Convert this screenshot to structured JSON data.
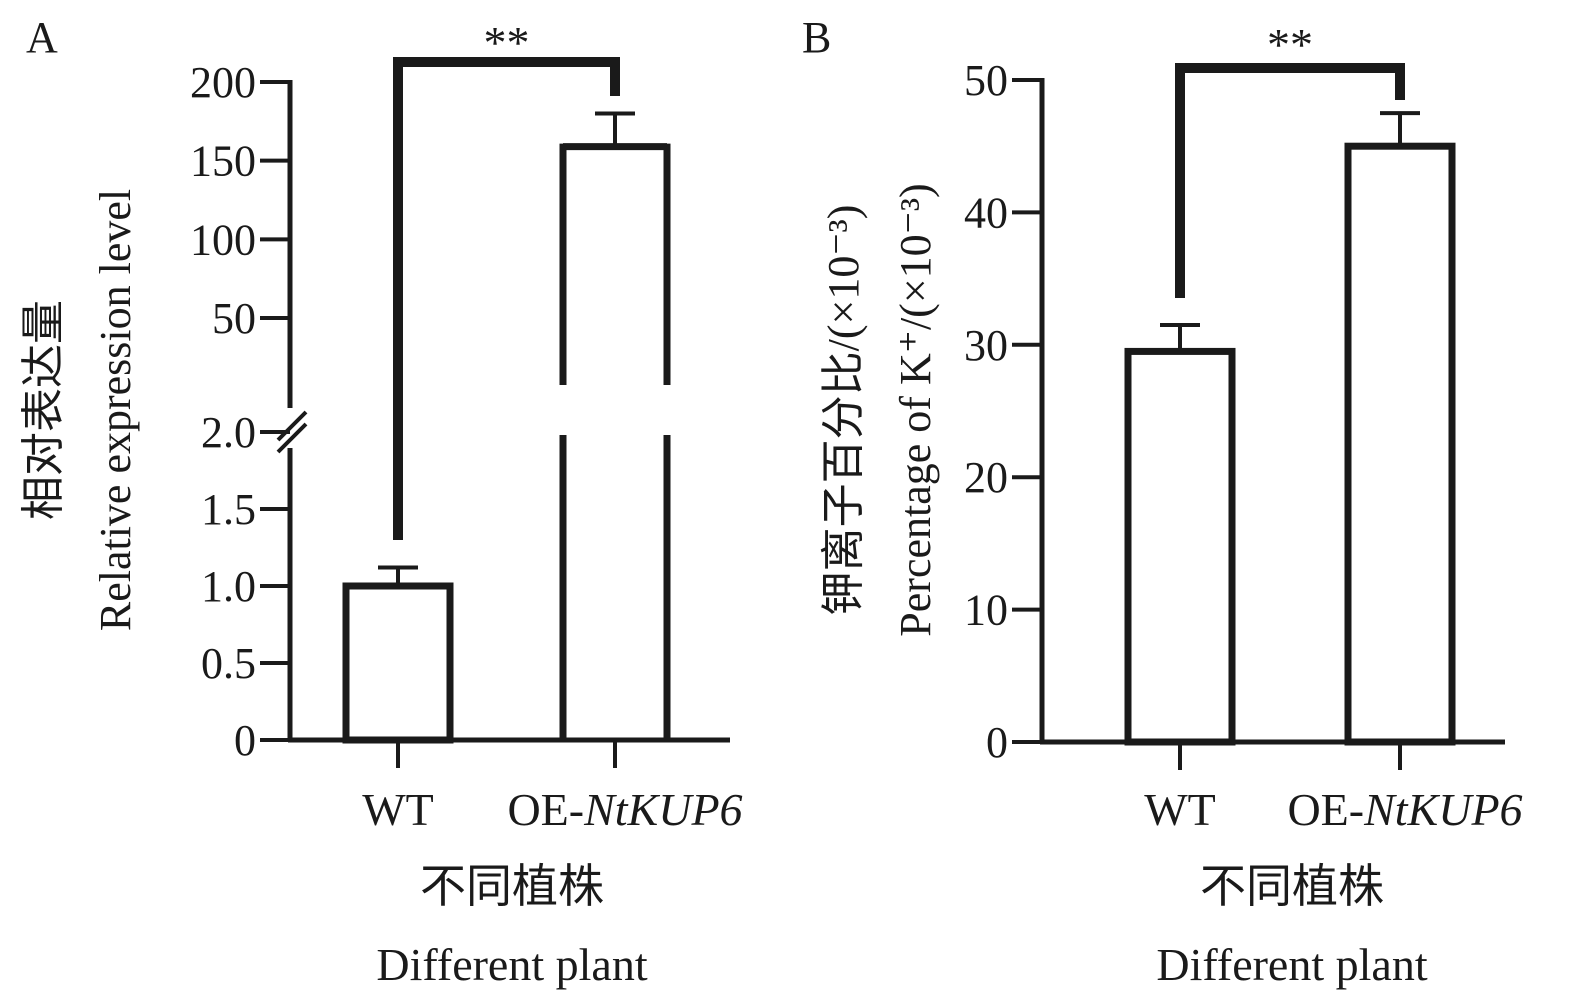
{
  "chart_data": [
    {
      "panel": "A",
      "type": "bar",
      "categories": [
        "WT",
        "OE-"
      ],
      "category_italic_suffix": [
        "",
        "NtKUP6"
      ],
      "values": [
        1.0,
        157
      ],
      "errors": [
        0.12,
        23
      ],
      "ylabel_cn": "相对表达量",
      "ylabel_en": "Relative expression level",
      "xlabel_cn": "不同植株",
      "xlabel_en": "Different plant",
      "axis_break": true,
      "lower_range": [
        0,
        2.0
      ],
      "upper_range": [
        0,
        200
      ],
      "lower_ticks": [
        "0",
        "0.5",
        "1.0",
        "1.5",
        "2.0"
      ],
      "upper_ticks": [
        "50",
        "100",
        "150",
        "200"
      ],
      "significance": "**"
    },
    {
      "panel": "B",
      "type": "bar",
      "categories": [
        "WT",
        "OE-"
      ],
      "category_italic_suffix": [
        "",
        "NtKUP6"
      ],
      "values": [
        29.5,
        45
      ],
      "errors": [
        2.0,
        2.5
      ],
      "ylabel_cn": "钾离子百分比/(×10⁻³)",
      "ylabel_en": "Percentage of K⁺/(×10⁻³)",
      "xlabel_cn": "不同植株",
      "xlabel_en": "Different plant",
      "ylim": [
        0,
        50
      ],
      "yticks": [
        "0",
        "10",
        "20",
        "30",
        "40",
        "50"
      ],
      "significance": "**"
    }
  ]
}
